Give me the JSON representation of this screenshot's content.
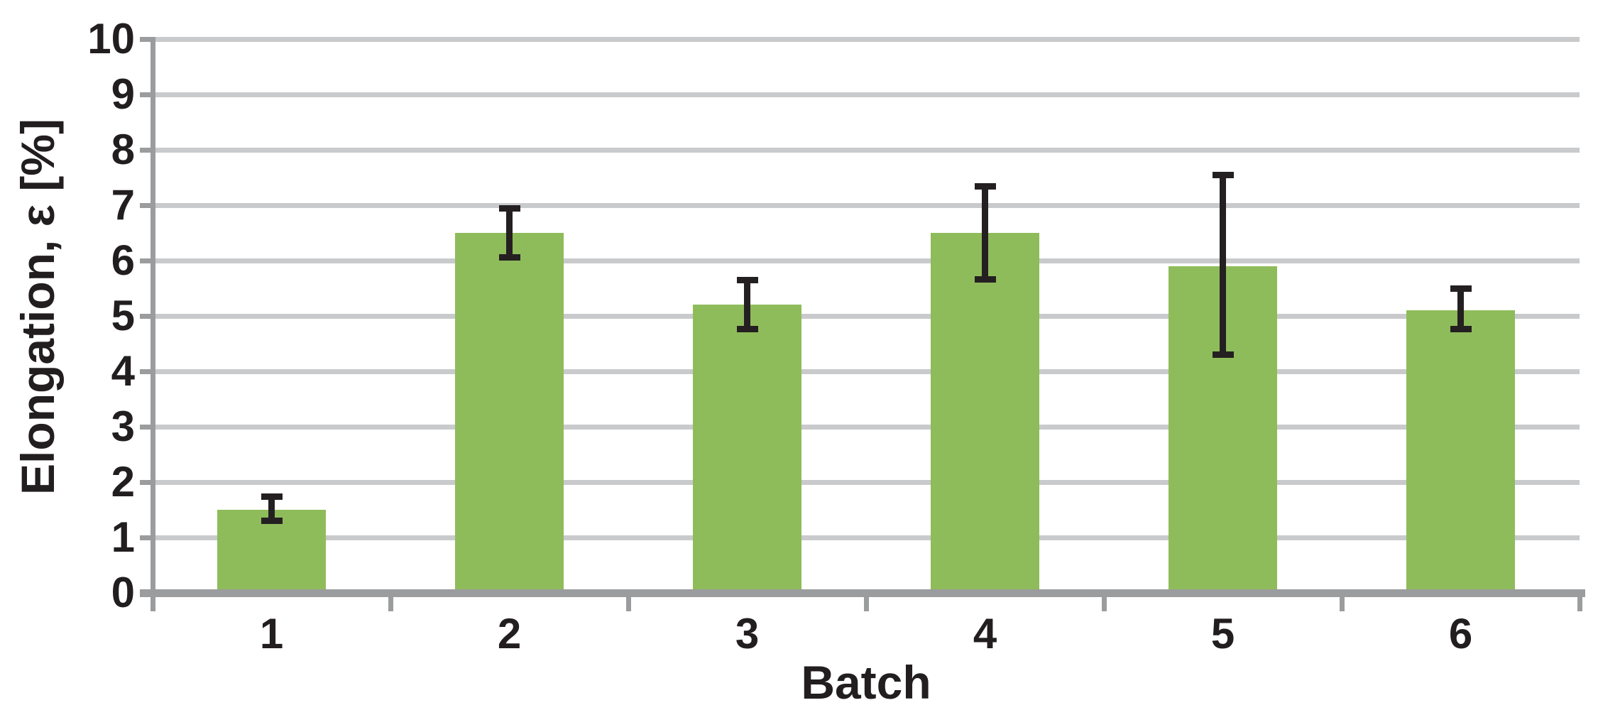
{
  "chart_data": {
    "type": "bar",
    "title": "",
    "xlabel": "Batch",
    "ylabel": "Elongation, ε [%]",
    "categories": [
      "1",
      "2",
      "3",
      "4",
      "5",
      "6"
    ],
    "values": [
      1.5,
      6.5,
      5.2,
      6.5,
      5.9,
      5.1
    ],
    "error_plus": [
      0.3,
      0.5,
      0.5,
      0.9,
      1.7,
      0.45
    ],
    "error_minus": [
      0.25,
      0.5,
      0.5,
      0.9,
      1.65,
      0.4
    ],
    "ylim": [
      0,
      10
    ],
    "ytick_step": 1,
    "yticks": [
      "0",
      "1",
      "2",
      "3",
      "4",
      "5",
      "6",
      "7",
      "8",
      "9",
      "10"
    ],
    "grid": true,
    "legend_position": "none",
    "colors": {
      "bar_fill": "#8FBC5B",
      "gridline": "#C9CACC",
      "axis": "#9B9C9E",
      "error_bar": "#242021",
      "text": "#221E1F",
      "background": "#FFFFFF"
    }
  }
}
